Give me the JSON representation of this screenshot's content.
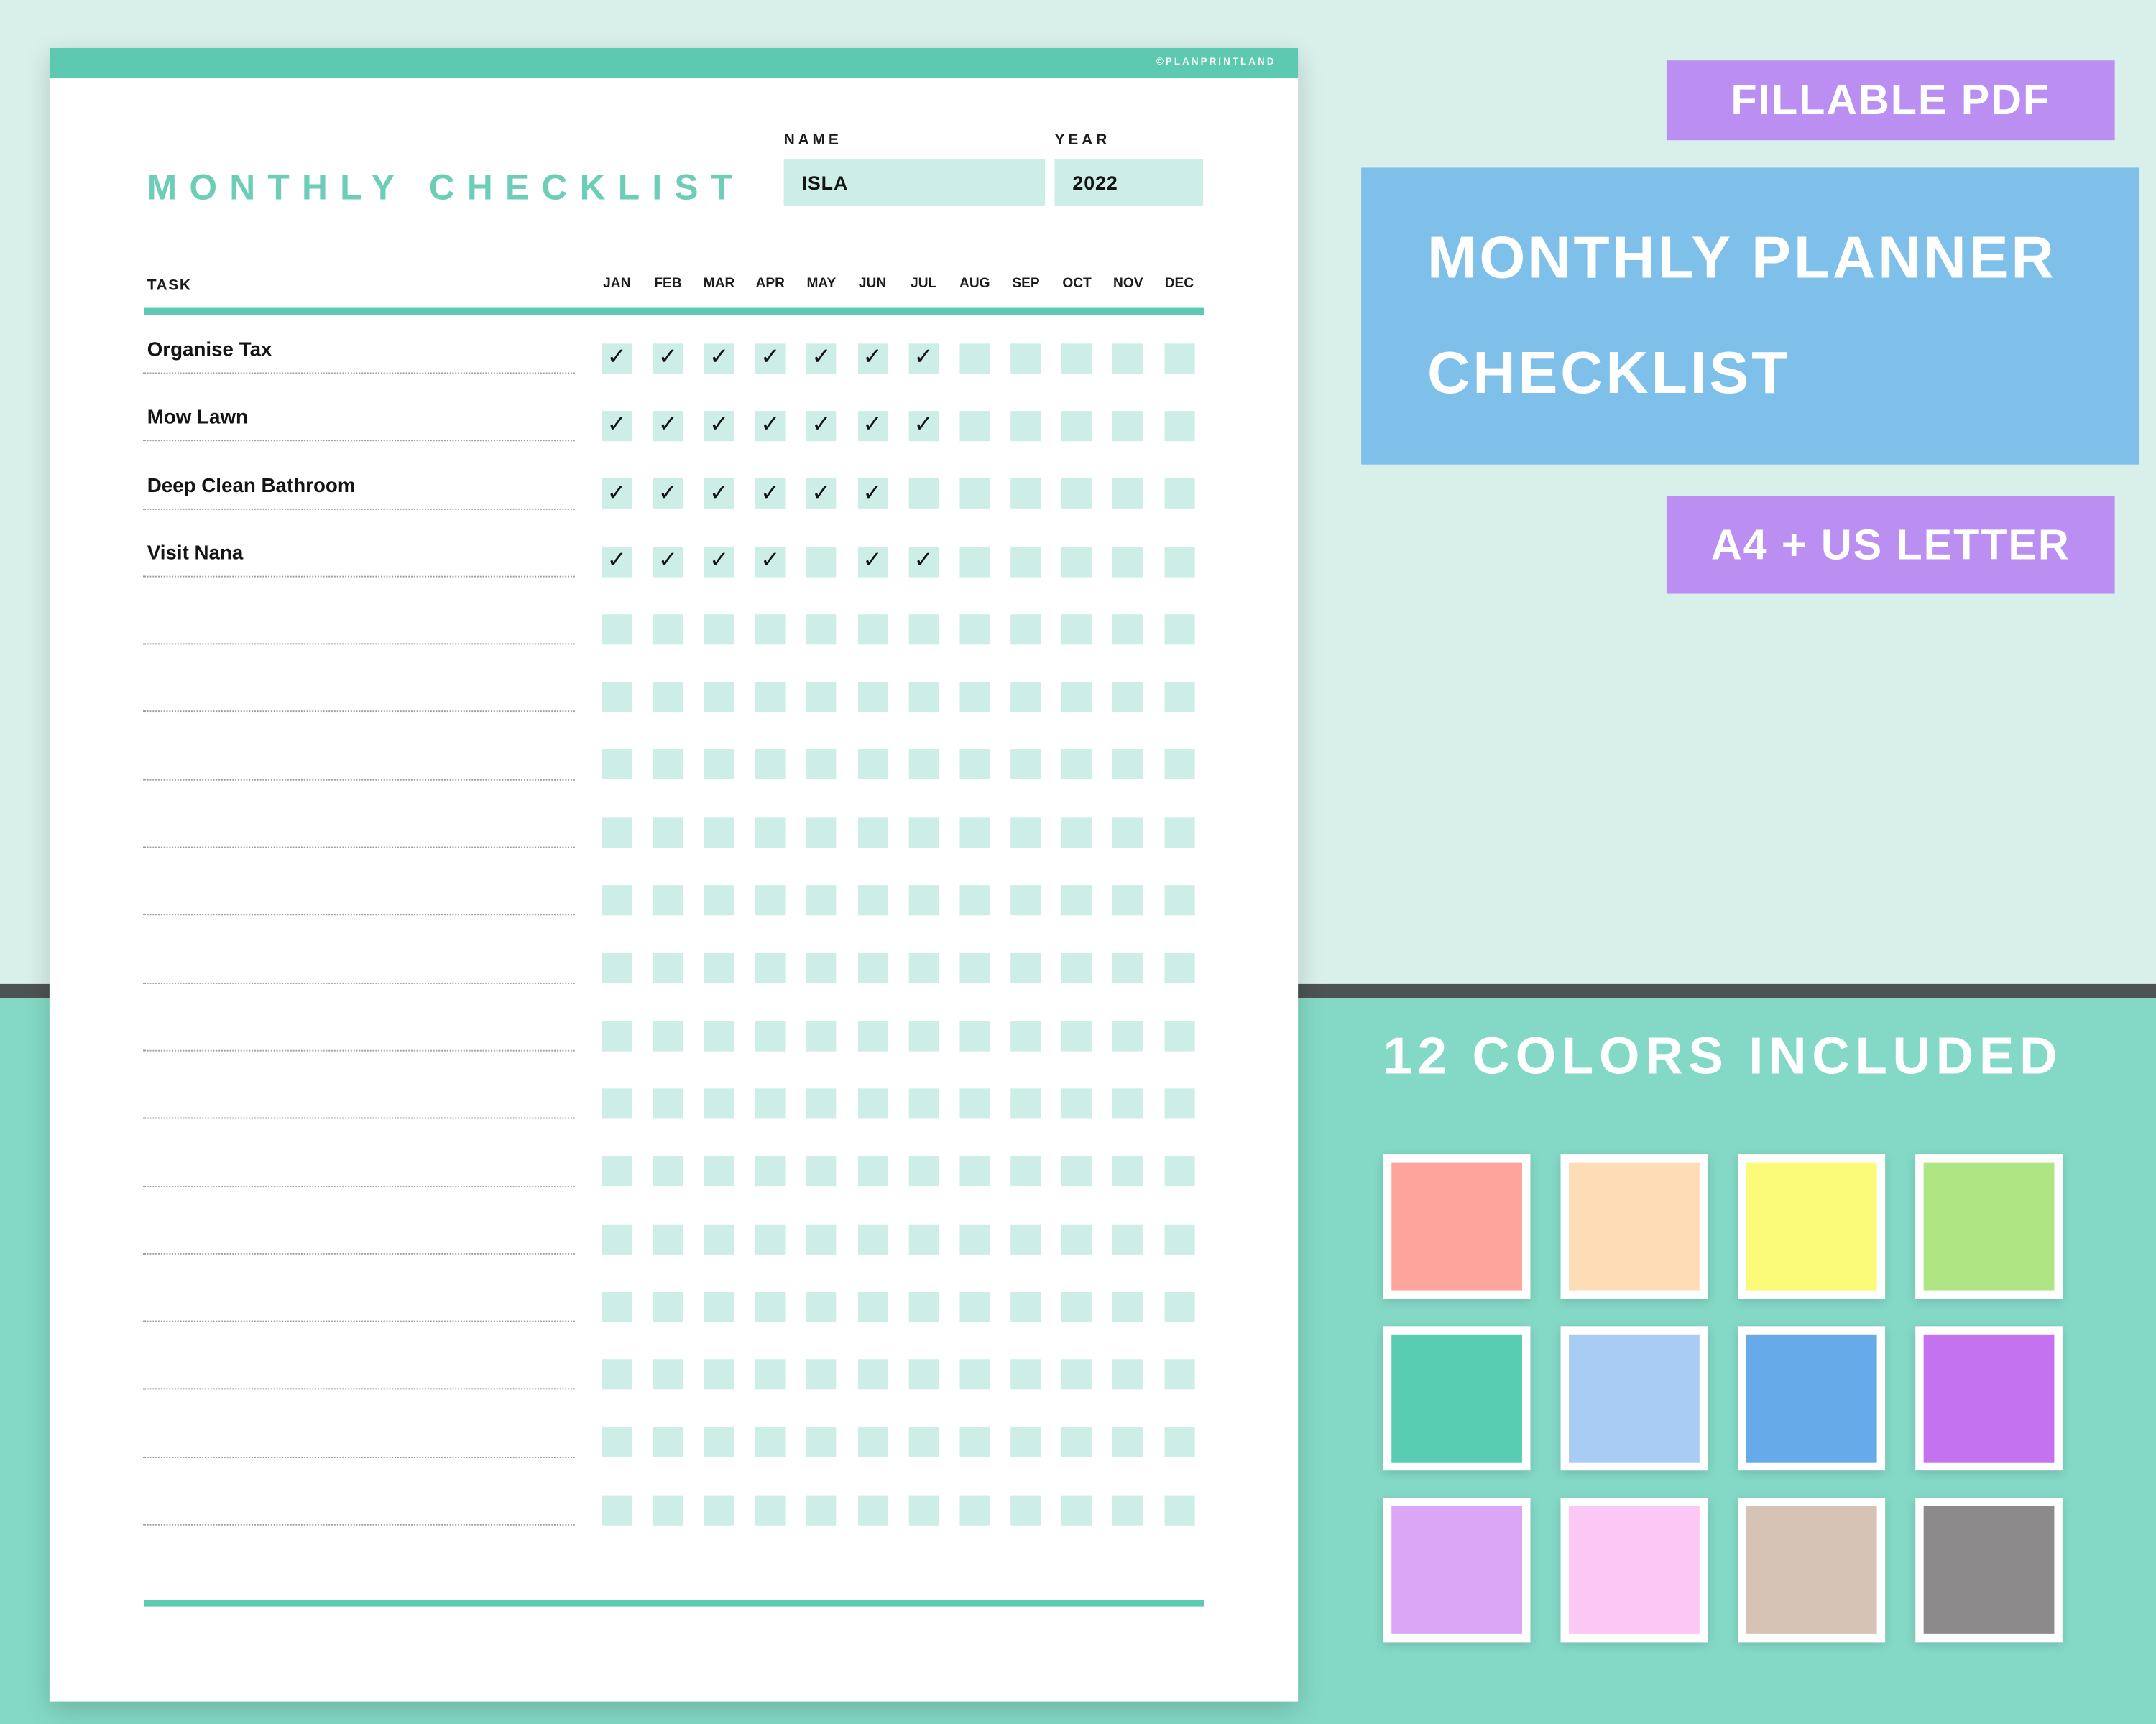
{
  "paper": {
    "brand": "©PLANPRINTLAND",
    "title": "MONTHLY CHECKLIST",
    "name_label": "NAME",
    "name_value": "ISLA",
    "year_label": "YEAR",
    "year_value": "2022",
    "task_header": "TASK",
    "check_glyph": "✓",
    "months": [
      "JAN",
      "FEB",
      "MAR",
      "APR",
      "MAY",
      "JUN",
      "JUL",
      "AUG",
      "SEP",
      "OCT",
      "NOV",
      "DEC"
    ],
    "tasks": [
      {
        "label": "Organise Tax",
        "checks": [
          1,
          1,
          1,
          1,
          1,
          1,
          1,
          0,
          0,
          0,
          0,
          0
        ]
      },
      {
        "label": "Mow Lawn",
        "checks": [
          1,
          1,
          1,
          1,
          1,
          1,
          1,
          0,
          0,
          0,
          0,
          0
        ]
      },
      {
        "label": "Deep Clean Bathroom",
        "checks": [
          1,
          1,
          1,
          1,
          1,
          1,
          0,
          0,
          0,
          0,
          0,
          0
        ]
      },
      {
        "label": "Visit Nana",
        "checks": [
          1,
          1,
          1,
          1,
          0,
          1,
          1,
          0,
          0,
          0,
          0,
          0
        ]
      }
    ],
    "empty_rows": 14
  },
  "badges": {
    "fillable": "FILLABLE PDF",
    "product_line1": "MONTHLY PLANNER",
    "product_line2": "CHECKLIST",
    "sizes": "A4 + US LETTER"
  },
  "colors_section": {
    "heading": "12 COLORS INCLUDED",
    "swatches": [
      "#ffa49c",
      "#fedcb6",
      "#fbfa79",
      "#b0e584",
      "#58cdb1",
      "#a9ccf4",
      "#67aae9",
      "#c572f1",
      "#dba6f6",
      "#fbc7f4",
      "#d6c3b6",
      "#8c8a8a"
    ]
  },
  "theme": {
    "teal": "#5ec9b1",
    "title_teal": "#6ecdb7",
    "mint_fill": "#cdeee6",
    "mint_bg": "#d9f0ea",
    "bottom_teal": "#84d9c6",
    "divider_gray": "#4d5352",
    "purple": "#bb8ef2",
    "blue": "#7ec0e9",
    "paper_white": "#ffffff",
    "ink": "#141414"
  }
}
